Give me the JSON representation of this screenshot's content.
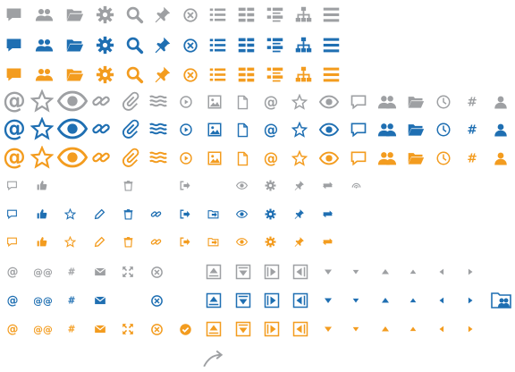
{
  "sprite": {
    "colors": {
      "gray": "#9ea0a3",
      "blue": "#1f6fb2",
      "orange": "#f39c1f"
    },
    "glyphs": {
      "at": "@",
      "double_at": "@@",
      "hash": "#"
    },
    "large_row_variants": [
      "gray",
      "blue",
      "orange"
    ],
    "rows": [
      {
        "group": "large",
        "variant": "gray",
        "icons": [
          "speech-bubble-icon",
          "users-icon",
          "folder-open-icon",
          "gear-icon",
          "search-icon",
          "pin-icon",
          "close-circle-icon",
          "list-icon",
          "grid-icon",
          "list-detail-icon",
          "sitemap-icon",
          "menu-lines-icon"
        ]
      },
      {
        "group": "large",
        "variant": "blue",
        "icons": [
          "speech-bubble-icon",
          "users-icon",
          "folder-open-icon",
          "gear-icon",
          "search-icon",
          "pin-icon",
          "close-circle-icon",
          "list-icon",
          "grid-icon",
          "list-detail-icon",
          "sitemap-icon",
          "menu-lines-icon"
        ]
      },
      {
        "group": "large",
        "variant": "orange",
        "icons": [
          "speech-bubble-icon",
          "users-icon",
          "folder-open-icon",
          "gear-icon",
          "search-icon",
          "pin-icon",
          "close-circle-icon",
          "list-icon",
          "grid-icon",
          "list-detail-icon",
          "sitemap-icon",
          "menu-lines-icon"
        ]
      }
    ],
    "mid_icons": [
      "at-icon",
      "star-icon",
      "eye-icon",
      "link-icon",
      "paperclip-icon",
      "waves-icon",
      "play-circle-icon",
      "image-icon",
      "document-icon",
      "at-small-icon",
      "star-small-icon",
      "eye-small-icon",
      "speech-outline-icon",
      "users-small-icon",
      "folder-small-icon",
      "clock-icon",
      "hash-icon",
      "user-icon"
    ],
    "small_icons": [
      "comment-outline-icon",
      "thumbs-up-icon",
      "star-outline-icon",
      "pencil-icon",
      "trash-icon",
      "link-small-icon",
      "sign-out-icon",
      "folder-arrow-icon",
      "eye-tiny-icon",
      "gear-tiny-icon",
      "pin-tiny-icon",
      "refresh-icon",
      "signal-icon"
    ],
    "tiny_icons": [
      "at-tiny-icon",
      "double-at-icon",
      "hash-tiny-icon",
      "envelope-icon",
      "expand-icon",
      "close-circle-small-icon",
      "check-circle-icon",
      "arrow-up-box-icon",
      "arrow-down-box-icon",
      "arrow-right-box-icon",
      "arrow-left-box-icon",
      "triangle-down-icon",
      "triangle-down-small-icon",
      "triangle-up-icon",
      "triangle-up-small-icon",
      "triangle-left-icon",
      "triangle-right-icon"
    ],
    "extras": [
      "folder-users-icon",
      "curved-arrow-icon"
    ]
  }
}
